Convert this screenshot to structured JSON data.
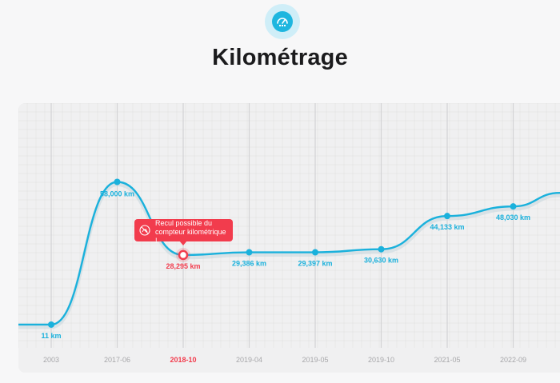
{
  "header": {
    "icon": "odometer-icon",
    "title": "Kilométrage"
  },
  "tooltip": {
    "icon": "rollback-warning-icon",
    "text": "Recul possible du compteur kilométrique !"
  },
  "colors": {
    "line": "#1ab1dc",
    "alert": "#f23c4d",
    "tick": "#a7a7aa",
    "grid": "#dedede"
  },
  "chart_data": {
    "type": "line",
    "x": [
      "2003",
      "2017-06",
      "2018-10",
      "2019-04",
      "2019-05",
      "2019-10",
      "2021-05",
      "2022-09"
    ],
    "values": [
      11,
      58000,
      28295,
      29386,
      29397,
      30630,
      44133,
      48030
    ],
    "point_labels": [
      "11 km",
      "58,000 km",
      "28,295 km",
      "29,386 km",
      "29,397 km",
      "30,630 km",
      "44,133 km",
      "48,030 km"
    ],
    "highlighted_index": 2,
    "grid": true
  }
}
